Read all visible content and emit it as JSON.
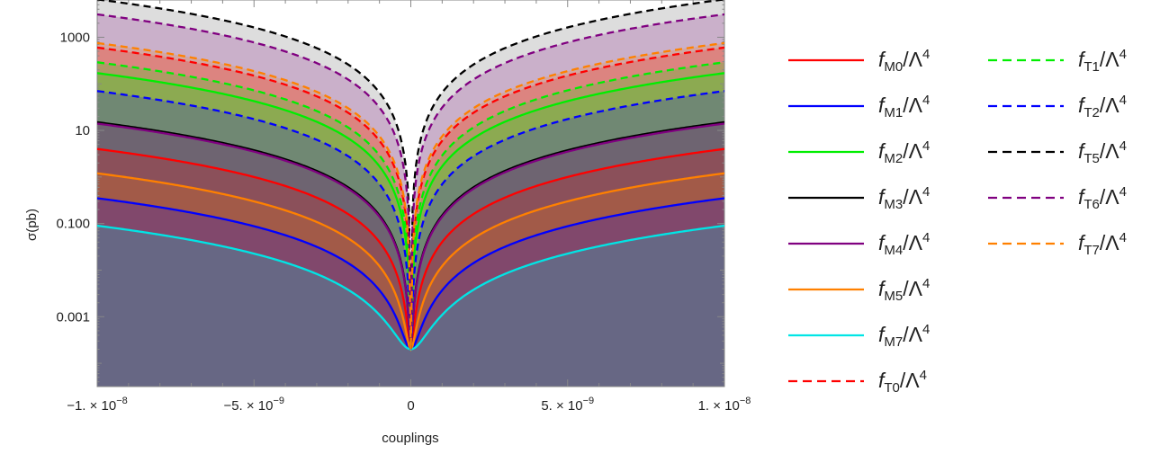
{
  "chart_data": {
    "type": "area",
    "xlabel": "couplings",
    "ylabel": "σ(pb)",
    "xlim": [
      -1e-08,
      1e-08
    ],
    "ylim_log10": [
      -4.5,
      3.8
    ],
    "yscale": "log",
    "x_ticks": [
      {
        "value": -1e-08,
        "label_mantissa": "−1. × 10",
        "label_exp": "−8"
      },
      {
        "value": -5e-09,
        "label_mantissa": "−5. × 10",
        "label_exp": "−9"
      },
      {
        "value": 0,
        "label_mantissa": "0",
        "label_exp": ""
      },
      {
        "value": 5e-09,
        "label_mantissa": "5. × 10",
        "label_exp": "−9"
      },
      {
        "value": 1e-08,
        "label_mantissa": "1. × 10",
        "label_exp": "−8"
      }
    ],
    "y_ticks": [
      {
        "value": 0.001,
        "label": "0.001"
      },
      {
        "value": 0.1,
        "label": "0.100"
      },
      {
        "value": 10,
        "label": "10"
      },
      {
        "value": 1000,
        "label": "1000"
      }
    ],
    "x": [
      -1e-08,
      0,
      1e-08
    ],
    "sigma_at_zero": 0.0002,
    "series": [
      {
        "name": "fM0",
        "sub": "M0",
        "color": "#ff0000",
        "dashed": false,
        "sigma_at_edge": 4.0
      },
      {
        "name": "fM1",
        "sub": "M1",
        "color": "#0000ff",
        "dashed": false,
        "sigma_at_edge": 0.35
      },
      {
        "name": "fM2",
        "sub": "M2",
        "color": "#00ee00",
        "dashed": false,
        "sigma_at_edge": 170
      },
      {
        "name": "fM3",
        "sub": "M3",
        "color": "#000000",
        "dashed": false,
        "sigma_at_edge": 15
      },
      {
        "name": "fM4",
        "sub": "M4",
        "color": "#800080",
        "dashed": false,
        "sigma_at_edge": 14
      },
      {
        "name": "fM5",
        "sub": "M5",
        "color": "#ff8000",
        "dashed": false,
        "sigma_at_edge": 1.2
      },
      {
        "name": "fM7",
        "sub": "M7",
        "color": "#00e5e5",
        "dashed": false,
        "sigma_at_edge": 0.09
      },
      {
        "name": "fT0",
        "sub": "T0",
        "color": "#ff0000",
        "dashed": true,
        "sigma_at_edge": 600
      },
      {
        "name": "fT1",
        "sub": "T1",
        "color": "#00ee00",
        "dashed": true,
        "sigma_at_edge": 290
      },
      {
        "name": "fT2",
        "sub": "T2",
        "color": "#0000ff",
        "dashed": true,
        "sigma_at_edge": 70
      },
      {
        "name": "fT5",
        "sub": "T5",
        "color": "#000000",
        "dashed": true,
        "sigma_at_edge": 6500
      },
      {
        "name": "fT6",
        "sub": "T6",
        "color": "#800080",
        "dashed": true,
        "sigma_at_edge": 3100
      },
      {
        "name": "fT7",
        "sub": "T7",
        "color": "#ff8000",
        "dashed": true,
        "sigma_at_edge": 750
      }
    ],
    "legend": {
      "placement": "right",
      "columns": 2,
      "label_denominator": "Λ",
      "label_power": "4"
    }
  }
}
